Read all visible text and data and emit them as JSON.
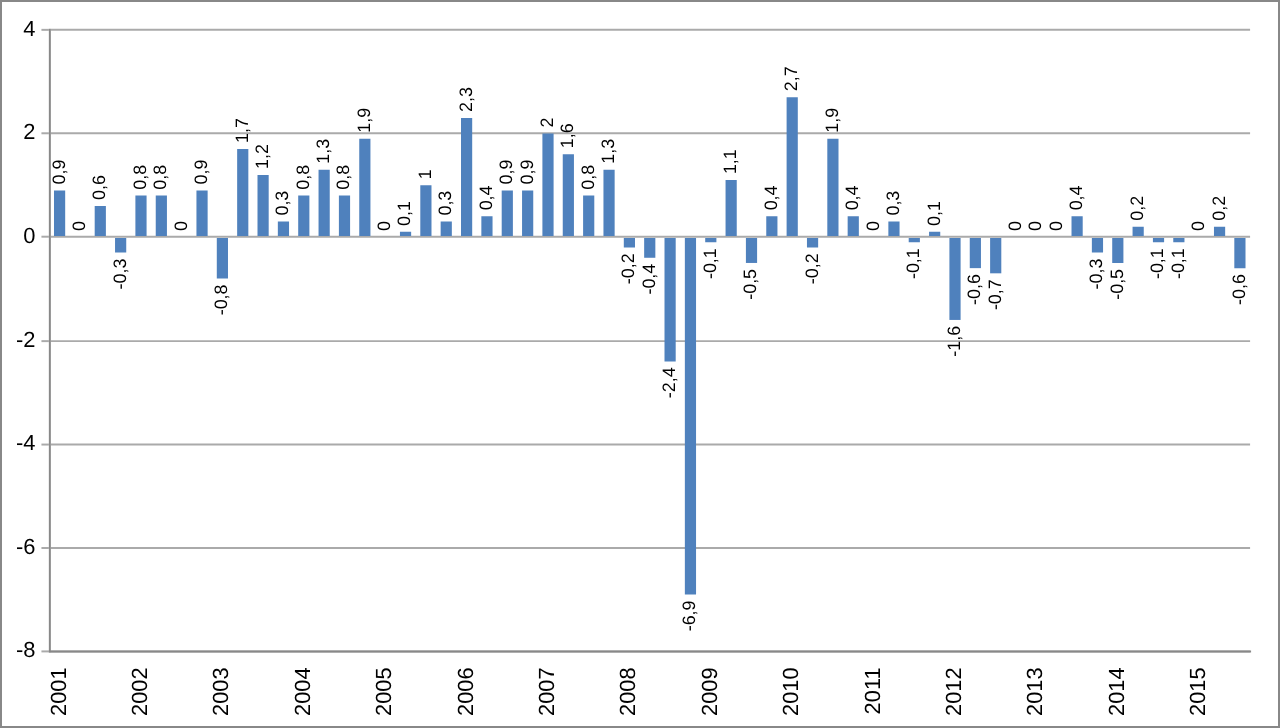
{
  "chart_data": {
    "type": "bar",
    "categories": [
      "2001",
      null,
      null,
      null,
      "2002",
      null,
      null,
      null,
      "2003",
      null,
      null,
      null,
      "2004",
      null,
      null,
      null,
      "2005",
      null,
      null,
      null,
      "2006",
      null,
      null,
      null,
      "2007",
      null,
      null,
      null,
      "2008",
      null,
      null,
      null,
      "2009",
      null,
      null,
      null,
      "2010",
      null,
      null,
      null,
      "2011",
      null,
      null,
      null,
      "2012",
      null,
      null,
      null,
      "2013",
      null,
      null,
      null,
      "2014",
      null,
      null,
      null,
      "2015",
      null,
      null
    ],
    "values": [
      0.9,
      0,
      0.6,
      -0.3,
      0.8,
      0.8,
      0,
      0.9,
      -0.8,
      1.7,
      1.2,
      0.3,
      0.8,
      1.3,
      0.8,
      1.9,
      0,
      0.1,
      1,
      0.3,
      2.3,
      0.4,
      0.9,
      0.9,
      2,
      1.6,
      0.8,
      1.3,
      -0.2,
      -0.4,
      -2.4,
      -6.9,
      -0.1,
      1.1,
      -0.5,
      0.4,
      2.7,
      -0.2,
      1.9,
      0.4,
      0,
      0.3,
      -0.1,
      0.1,
      -1.6,
      -0.6,
      -0.7,
      0,
      0,
      0,
      0.4,
      -0.3,
      -0.5,
      0.2,
      -0.1,
      -0.1,
      0,
      0.2,
      -0.6
    ],
    "value_labels": [
      "0,9",
      "0",
      "0,6",
      "-0,3",
      "0,8",
      "0,8",
      "0",
      "0,9",
      "-0,8",
      "1,7",
      "1,2",
      "0,3",
      "0,8",
      "1,3",
      "0,8",
      "1,9",
      "0",
      "0,1",
      "1",
      "0,3",
      "2,3",
      "0,4",
      "0,9",
      "0,9",
      "2",
      "1,6",
      "0,8",
      "1,3",
      "-0,2",
      "-0,4",
      "-2,4",
      "-6,9",
      "-0,1",
      "1,1",
      "-0,5",
      "0,4",
      "2,7",
      "-0,2",
      "1,9",
      "0,4",
      "0",
      "0,3",
      "-0,1",
      "0,1",
      "-1,6",
      "-0,6",
      "-0,7",
      "0",
      "0",
      "0",
      "0,4",
      "-0,3",
      "-0,5",
      "0,2",
      "-0,1",
      "-0,1",
      "0",
      "0,2",
      "-0,6"
    ],
    "color": "#4f81bd",
    "ylim": [
      -8,
      4
    ],
    "yticks": [
      -8,
      -6,
      -4,
      -2,
      0,
      2,
      4
    ],
    "grid": "y"
  }
}
